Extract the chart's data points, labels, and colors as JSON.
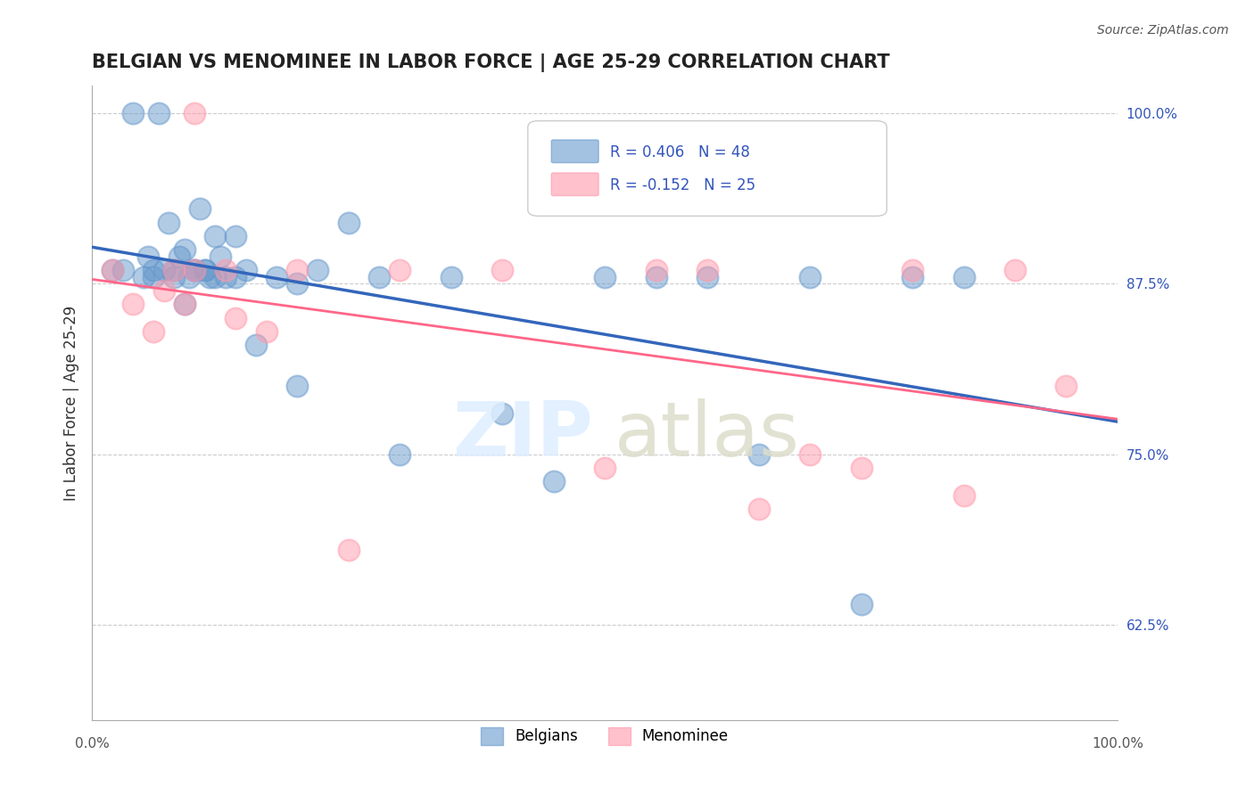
{
  "title": "BELGIAN VS MENOMINEE IN LABOR FORCE | AGE 25-29 CORRELATION CHART",
  "source_text": "Source: ZipAtlas.com",
  "ylabel": "In Labor Force | Age 25-29",
  "xlim": [
    0.0,
    1.0
  ],
  "ylim": [
    0.555,
    1.02
  ],
  "yticks": [
    0.625,
    0.75,
    0.875,
    1.0
  ],
  "ytick_labels": [
    "62.5%",
    "75.0%",
    "87.5%",
    "100.0%"
  ],
  "legend_label1": "Belgians",
  "legend_label2": "Menominee",
  "r_belgian": 0.406,
  "n_belgian": 48,
  "r_menominee": -0.152,
  "n_menominee": 25,
  "blue_color": "#6699CC",
  "pink_color": "#FF99AA",
  "blue_line_color": "#3366BB",
  "pink_line_color": "#FF6688",
  "background_color": "#FFFFFF",
  "grid_color": "#CCCCCC",
  "belgian_x": [
    0.02,
    0.03,
    0.04,
    0.05,
    0.055,
    0.06,
    0.065,
    0.07,
    0.075,
    0.08,
    0.085,
    0.09,
    0.095,
    0.1,
    0.105,
    0.11,
    0.115,
    0.12,
    0.125,
    0.13,
    0.14,
    0.15,
    0.16,
    0.18,
    0.2,
    0.22,
    0.25,
    0.28,
    0.3,
    0.35,
    0.4,
    0.45,
    0.5,
    0.55,
    0.6,
    0.65,
    0.7,
    0.75,
    0.8,
    0.85,
    0.06,
    0.08,
    0.09,
    0.1,
    0.11,
    0.12,
    0.14,
    0.2
  ],
  "belgian_y": [
    0.885,
    0.885,
    1.0,
    0.88,
    0.895,
    0.885,
    1.0,
    0.885,
    0.92,
    0.88,
    0.895,
    0.9,
    0.88,
    0.885,
    0.93,
    0.885,
    0.88,
    0.88,
    0.895,
    0.88,
    0.91,
    0.885,
    0.83,
    0.88,
    0.875,
    0.885,
    0.92,
    0.88,
    0.75,
    0.88,
    0.78,
    0.73,
    0.88,
    0.88,
    0.88,
    0.75,
    0.88,
    0.64,
    0.88,
    0.88,
    0.88,
    0.885,
    0.86,
    0.885,
    0.885,
    0.91,
    0.88,
    0.8
  ],
  "menominee_x": [
    0.02,
    0.04,
    0.06,
    0.07,
    0.08,
    0.09,
    0.1,
    0.1,
    0.13,
    0.14,
    0.17,
    0.2,
    0.25,
    0.3,
    0.4,
    0.5,
    0.55,
    0.6,
    0.65,
    0.7,
    0.75,
    0.8,
    0.85,
    0.9,
    0.95
  ],
  "menominee_y": [
    0.885,
    0.86,
    0.84,
    0.87,
    0.885,
    0.86,
    0.885,
    1.0,
    0.885,
    0.85,
    0.84,
    0.885,
    0.68,
    0.885,
    0.885,
    0.74,
    0.885,
    0.885,
    0.71,
    0.75,
    0.74,
    0.885,
    0.72,
    0.885,
    0.8
  ]
}
